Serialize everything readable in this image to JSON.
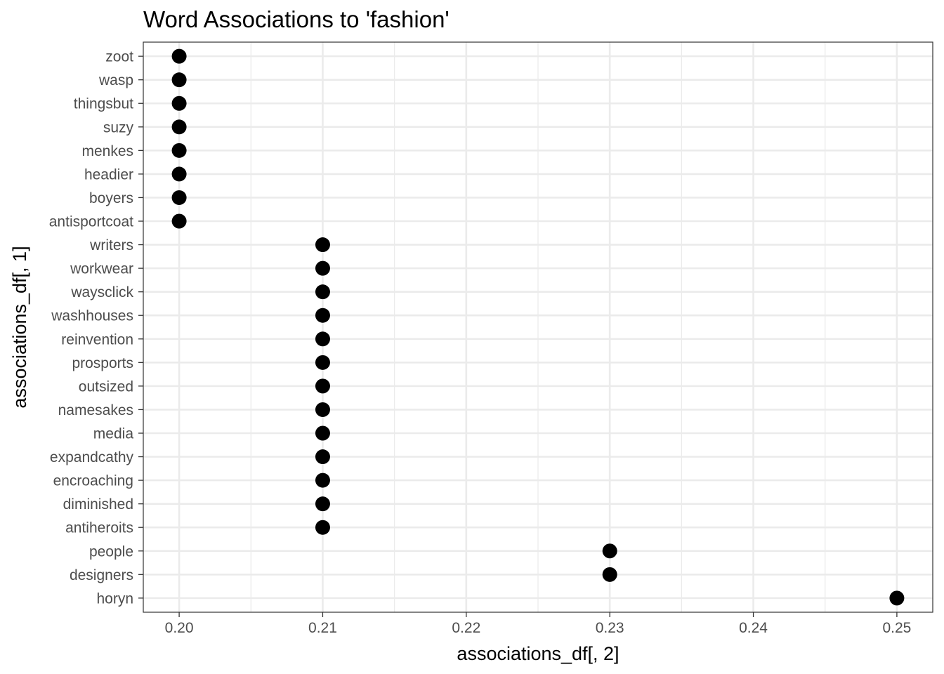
{
  "chart_data": {
    "type": "scatter",
    "title": "Word Associations to 'fashion'",
    "xlabel": "associations_df[, 2]",
    "ylabel": "associations_df[, 1]",
    "xlim": [
      0.1975,
      0.2525
    ],
    "xticks": [
      "0.20",
      "0.21",
      "0.22",
      "0.23",
      "0.24",
      "0.25"
    ],
    "grid": true,
    "theme": "bw",
    "point_color": "#000000",
    "categories": [
      "zoot",
      "wasp",
      "thingsbut",
      "suzy",
      "menkes",
      "headier",
      "boyers",
      "antisportcoat",
      "writers",
      "workwear",
      "waysclick",
      "washhouses",
      "reinvention",
      "prosports",
      "outsized",
      "namesakes",
      "media",
      "expandcathy",
      "encroaching",
      "diminished",
      "antiheroits",
      "people",
      "designers",
      "horyn"
    ],
    "values": [
      0.2,
      0.2,
      0.2,
      0.2,
      0.2,
      0.2,
      0.2,
      0.2,
      0.21,
      0.21,
      0.21,
      0.21,
      0.21,
      0.21,
      0.21,
      0.21,
      0.21,
      0.21,
      0.21,
      0.21,
      0.21,
      0.23,
      0.23,
      0.25
    ]
  }
}
